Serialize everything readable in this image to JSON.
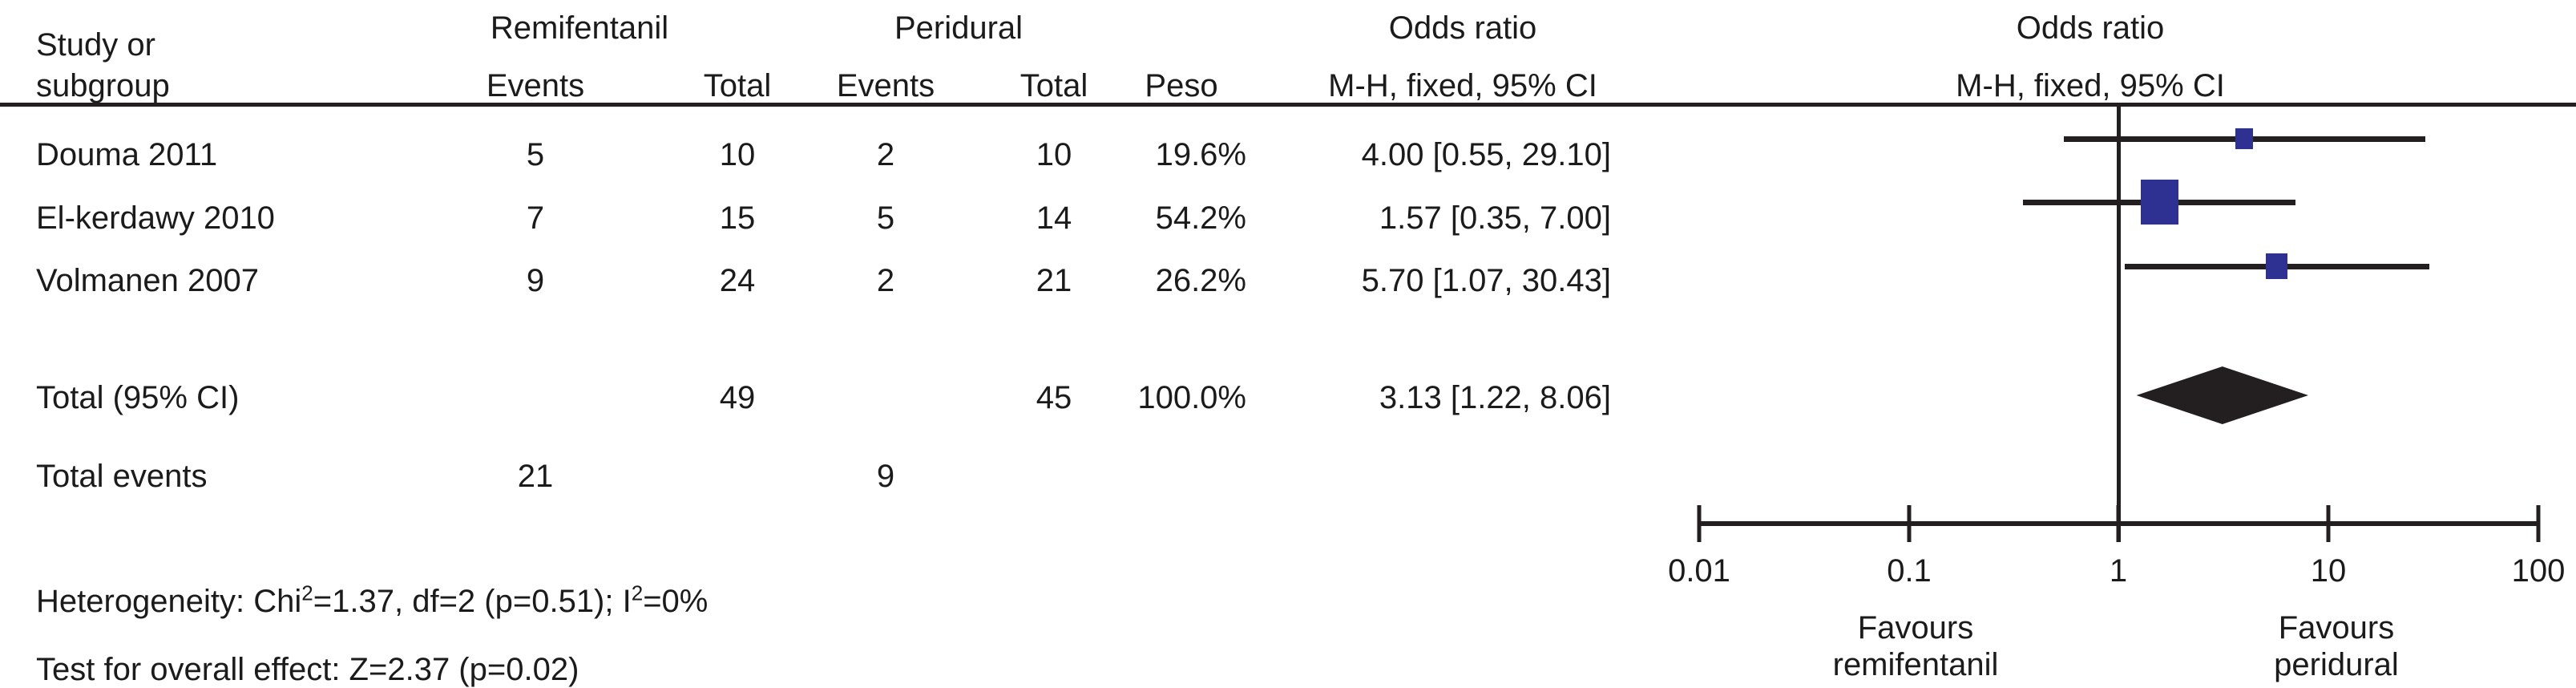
{
  "table": {
    "col_study_line1": "Study or",
    "col_study_line2": "subgroup",
    "group_remifentanil": "Remifentanil",
    "group_peridural": "Peridural",
    "col_events_remi": "Events",
    "col_total_remi": "Total",
    "col_events_peri": "Events",
    "col_total_peri": "Total",
    "col_weight": "Peso",
    "or_col_line1": "Odds ratio",
    "or_col_line2": "M-H, fixed, 95% CI",
    "plot_col_line1": "Odds ratio",
    "plot_col_line2": "M-H, fixed, 95% CI",
    "rows": [
      {
        "study": "Douma 2011",
        "e1": "5",
        "t1": "10",
        "e2": "2",
        "t2": "10",
        "weight": "19.6%",
        "or_ci": "4.00 [0.55, 29.10]"
      },
      {
        "study": "El-kerdawy 2010",
        "e1": "7",
        "t1": "15",
        "e2": "5",
        "t2": "14",
        "weight": "54.2%",
        "or_ci": "1.57 [0.35, 7.00]"
      },
      {
        "study": "Volmanen 2007",
        "e1": "9",
        "t1": "24",
        "e2": "2",
        "t2": "21",
        "weight": "26.2%",
        "or_ci": "5.70 [1.07, 30.43]"
      }
    ],
    "total_row": {
      "label": "Total (95% CI)",
      "t1": "49",
      "t2": "45",
      "weight": "100.0%",
      "or_ci": "3.13 [1.22, 8.06]"
    },
    "total_events_row": {
      "label": "Total events",
      "e1": "21",
      "e2": "9"
    }
  },
  "footer": {
    "het_prefix": "Heterogeneity: Chi",
    "het_sup1": "2",
    "het_mid": "=1.37, df=2 (p=0.51); I",
    "het_sup2": "2",
    "het_suffix": "=0%",
    "overall_effect": "Test for overall effect: Z=2.37 (p=0.02)"
  },
  "axis": {
    "ticks": [
      "0.01",
      "0.1",
      "1",
      "10",
      "100"
    ],
    "favours_left_line1": "Favours",
    "favours_left_line2": "remifentanil",
    "favours_right_line1": "Favours",
    "favours_right_line2": "peridural"
  },
  "colors": {
    "marker_square": "#2e3192",
    "lines_and_diamond": "#231f20",
    "background": "#ffffff"
  },
  "chart_data": {
    "type": "forest",
    "effect_measure": "Odds ratio, M-H, fixed, 95% CI",
    "x_scale": "log",
    "x_ticks": [
      0.01,
      0.1,
      1,
      10,
      100
    ],
    "xlim": [
      0.01,
      100
    ],
    "null_line": 1,
    "studies": [
      {
        "name": "Douma 2011",
        "events_remifentanil": 5,
        "total_remifentanil": 10,
        "events_peridural": 2,
        "total_peridural": 10,
        "weight_pct": 19.6,
        "or": 4.0,
        "ci_low": 0.55,
        "ci_high": 29.1
      },
      {
        "name": "El-kerdawy 2010",
        "events_remifentanil": 7,
        "total_remifentanil": 15,
        "events_peridural": 5,
        "total_peridural": 14,
        "weight_pct": 54.2,
        "or": 1.57,
        "ci_low": 0.35,
        "ci_high": 7.0
      },
      {
        "name": "Volmanen 2007",
        "events_remifentanil": 9,
        "total_remifentanil": 24,
        "events_peridural": 2,
        "total_peridural": 21,
        "weight_pct": 26.2,
        "or": 5.7,
        "ci_low": 1.07,
        "ci_high": 30.43
      }
    ],
    "total": {
      "or": 3.13,
      "ci_low": 1.22,
      "ci_high": 8.06,
      "total_remifentanil": 49,
      "total_peridural": 45,
      "weight_pct": 100.0,
      "events_remifentanil": 21,
      "events_peridural": 9
    },
    "heterogeneity": {
      "chi2": 1.37,
      "df": 2,
      "p": 0.51,
      "i2_pct": 0
    },
    "overall_effect": {
      "z": 2.37,
      "p": 0.02
    },
    "favours_left": "Favours remifentanil",
    "favours_right": "Favours peridural"
  }
}
